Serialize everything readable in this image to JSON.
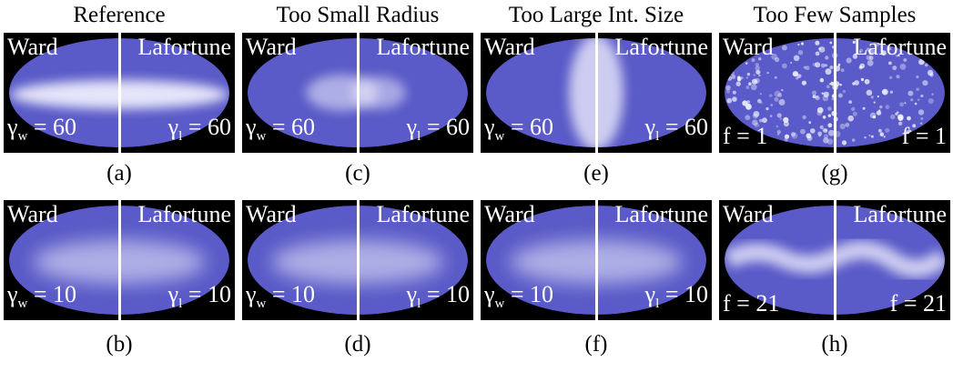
{
  "columns": [
    {
      "title": "Reference"
    },
    {
      "title": "Too Small Radius"
    },
    {
      "title": "Too Large Int. Size"
    },
    {
      "title": "Too Few Samples"
    }
  ],
  "labels": {
    "left": "Ward",
    "right": "Lafortune"
  },
  "panels": [
    {
      "caption": "(a)",
      "gamma_left": "γw = 60",
      "gamma_right": "γl = 60"
    },
    {
      "caption": "(c)",
      "gamma_left": "γw = 60",
      "gamma_right": "γl = 60"
    },
    {
      "caption": "(e)",
      "gamma_left": "γw = 60",
      "gamma_right": "γl = 60"
    },
    {
      "caption": "(g)",
      "gamma_left": "f = 1",
      "gamma_right": "f = 1"
    },
    {
      "caption": "(b)",
      "gamma_left": "γw = 10",
      "gamma_right": "γl = 10"
    },
    {
      "caption": "(d)",
      "gamma_left": "γw = 10",
      "gamma_right": "γl = 10"
    },
    {
      "caption": "(f)",
      "gamma_left": "γw = 10",
      "gamma_right": "γl = 10"
    },
    {
      "caption": "(h)",
      "gamma_left": "f = 21",
      "gamma_right": "f = 21"
    }
  ],
  "colors": {
    "lobe": "#5a5ac8",
    "highlight": "#f4f4ff",
    "background": "#000000"
  }
}
